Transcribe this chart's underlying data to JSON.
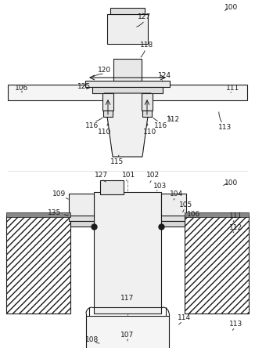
{
  "bg_color": "#ffffff",
  "line_color": "#1a1a1a",
  "fig_width": 3.26,
  "fig_height": 4.44,
  "dpi": 100
}
